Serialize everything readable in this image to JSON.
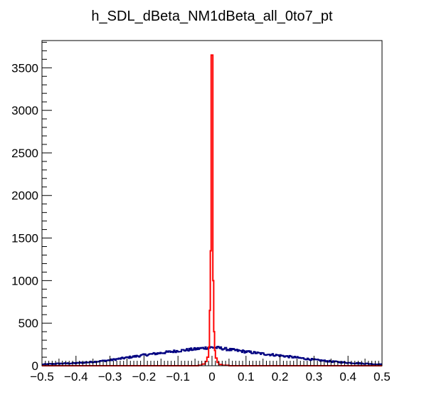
{
  "chart_data": {
    "type": "histogram",
    "title": "h_SDL_dBeta_NM1dBeta_all_0to7_pt",
    "xlabel": "",
    "ylabel": "",
    "xlim": [
      -0.5,
      0.5
    ],
    "ylim": [
      0,
      3820
    ],
    "x_ticks": [
      -0.5,
      -0.4,
      -0.3,
      -0.2,
      -0.1,
      0,
      0.1,
      0.2,
      0.3,
      0.4,
      0.5
    ],
    "x_tick_labels": [
      "−0.5",
      "−0.4",
      "−0.3",
      "−0.2",
      "−0.1",
      "0",
      "0.1",
      "0.2",
      "0.3",
      "0.4",
      "0.5"
    ],
    "y_ticks": [
      0,
      500,
      1000,
      1500,
      2000,
      2500,
      3000,
      3500
    ],
    "y_tick_labels": [
      "0",
      "500",
      "1000",
      "1500",
      "2000",
      "2500",
      "3000",
      "3500"
    ],
    "grid": false,
    "legend": "none",
    "series": [
      {
        "color": "#000080",
        "profile": [
          [
            -0.5,
            15
          ],
          [
            -0.45,
            25
          ],
          [
            -0.4,
            30
          ],
          [
            -0.35,
            45
          ],
          [
            -0.3,
            65
          ],
          [
            -0.25,
            95
          ],
          [
            -0.2,
            125
          ],
          [
            -0.15,
            150
          ],
          [
            -0.1,
            175
          ],
          [
            -0.05,
            195
          ],
          [
            -0.02,
            210
          ],
          [
            0.0,
            215
          ],
          [
            0.02,
            210
          ],
          [
            0.05,
            190
          ],
          [
            0.1,
            165
          ],
          [
            0.15,
            140
          ],
          [
            0.2,
            120
          ],
          [
            0.25,
            95
          ],
          [
            0.3,
            70
          ],
          [
            0.35,
            50
          ],
          [
            0.4,
            35
          ],
          [
            0.45,
            25
          ],
          [
            0.5,
            15
          ]
        ]
      },
      {
        "color": "#ff0000",
        "peak": [
          [
            -0.05,
            0
          ],
          [
            -0.04,
            5
          ],
          [
            -0.03,
            20
          ],
          [
            -0.02,
            50
          ],
          [
            -0.015,
            100
          ],
          [
            -0.01,
            220
          ],
          [
            -0.0075,
            650
          ],
          [
            -0.005,
            1350
          ],
          [
            -0.0025,
            3650
          ],
          [
            0.0,
            3650
          ],
          [
            0.0025,
            1000
          ],
          [
            0.005,
            400
          ],
          [
            0.0075,
            180
          ],
          [
            0.01,
            90
          ],
          [
            0.015,
            40
          ],
          [
            0.02,
            15
          ],
          [
            0.03,
            5
          ],
          [
            0.05,
            0
          ]
        ]
      }
    ]
  }
}
